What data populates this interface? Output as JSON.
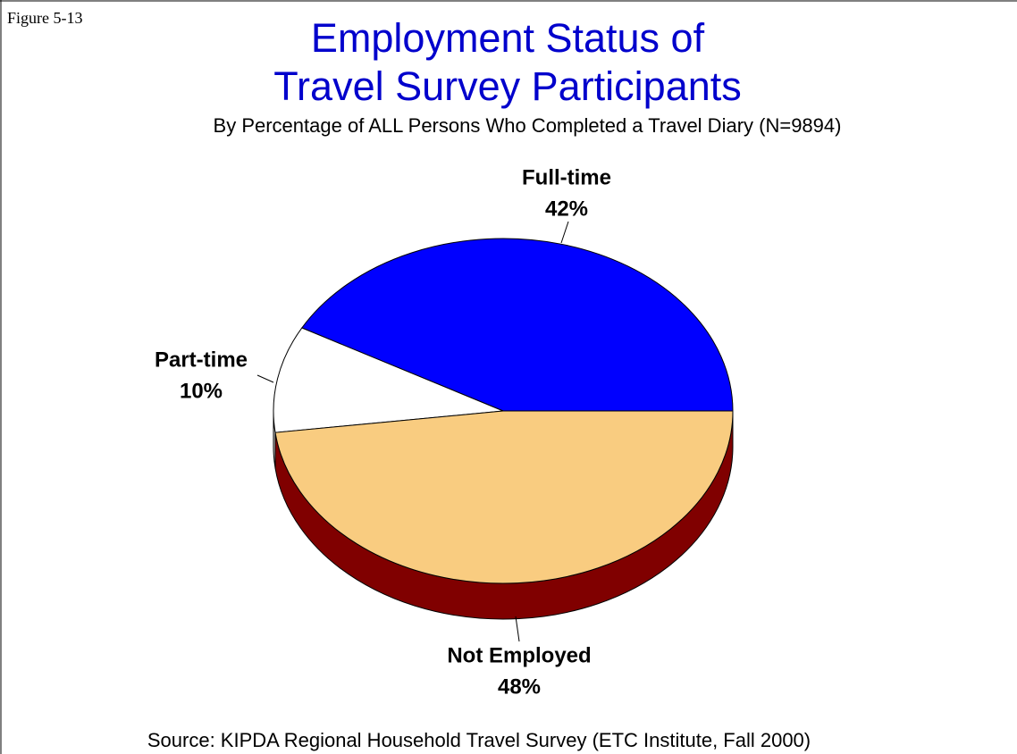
{
  "figure_label": "Figure 5-13",
  "chart_data": {
    "type": "pie",
    "title": [
      "Employment Status of",
      "Travel Survey Participants"
    ],
    "subtitle": "By Percentage of ALL Persons Who Completed a Travel Diary (N=9894)",
    "categories": [
      "Full-time",
      "Part-time",
      "Not Employed"
    ],
    "values": [
      42,
      10,
      48
    ],
    "value_labels": [
      "42%",
      "10%",
      "48%"
    ],
    "colors": [
      "#0000ff",
      "#ffffff",
      "#f9cc80"
    ],
    "depth_colors": [
      "#00007f",
      "#d8d8d8",
      "#800000"
    ]
  },
  "source": "Source:  KIPDA Regional Household Travel Survey (ETC Institute, Fall 2000)"
}
